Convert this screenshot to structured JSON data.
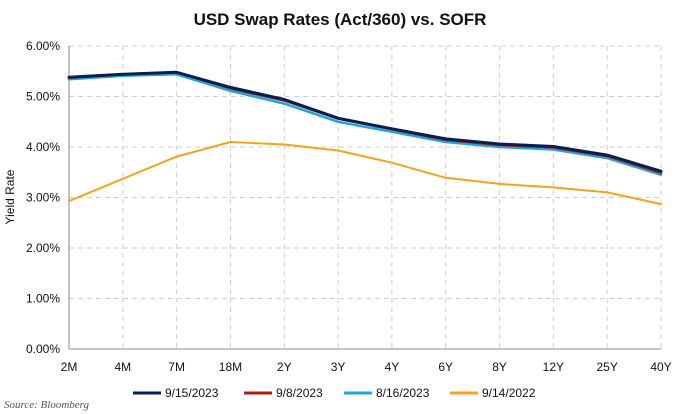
{
  "chart_data": {
    "type": "line",
    "title": "USD Swap Rates (Act/360) vs. SOFR",
    "xlabel": "",
    "ylabel": "Yield Rate",
    "categories": [
      "2M",
      "4M",
      "7M",
      "18M",
      "2Y",
      "3Y",
      "4Y",
      "6Y",
      "8Y",
      "12Y",
      "25Y",
      "40Y"
    ],
    "ylim": [
      0,
      6
    ],
    "yticks": [
      0,
      1,
      2,
      3,
      4,
      5,
      6
    ],
    "ytick_labels": [
      "0.00%",
      "1.00%",
      "2.00%",
      "3.00%",
      "4.00%",
      "5.00%",
      "6.00%"
    ],
    "grid": true,
    "legend_position": "bottom",
    "series": [
      {
        "name": "9/15/2023",
        "color": "#0b1f4d",
        "values": [
          5.38,
          5.44,
          5.48,
          5.18,
          4.94,
          4.57,
          4.36,
          4.16,
          4.06,
          4.01,
          3.84,
          3.52
        ]
      },
      {
        "name": "9/8/2023",
        "color": "#b01a1a",
        "values": [
          5.37,
          5.44,
          5.48,
          5.16,
          4.92,
          4.56,
          4.35,
          4.14,
          4.04,
          3.99,
          3.82,
          3.49
        ]
      },
      {
        "name": "8/16/2023",
        "color": "#1ea7dd",
        "values": [
          5.34,
          5.41,
          5.44,
          5.11,
          4.86,
          4.5,
          4.3,
          4.1,
          4.0,
          3.95,
          3.78,
          3.45
        ]
      },
      {
        "name": "9/14/2022",
        "color": "#f5a31a",
        "values": [
          2.93,
          3.37,
          3.81,
          4.1,
          4.05,
          3.93,
          3.69,
          3.39,
          3.27,
          3.2,
          3.1,
          2.87
        ]
      }
    ],
    "source": "Source: Bloomberg"
  }
}
